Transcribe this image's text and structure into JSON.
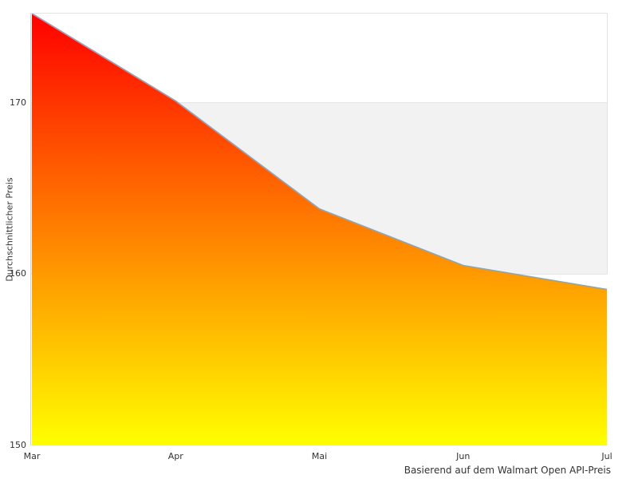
{
  "chart_data": {
    "type": "area",
    "categories": [
      "Mar",
      "Apr",
      "Mai",
      "Jun",
      "Jul"
    ],
    "values": [
      175.2,
      170.1,
      163.8,
      160.5,
      159.1
    ],
    "title": "",
    "xlabel": "",
    "ylabel": "Durchschnittlicher Preis",
    "caption": "Basierend auf dem Walmart Open API-Preis",
    "ylim": [
      150,
      175.2
    ],
    "yticks": [
      150,
      160,
      170
    ],
    "band": {
      "from": 160,
      "to": 170,
      "color": "#f2f2f2"
    },
    "legend": "none",
    "grid": "horizontal-band",
    "colors": {
      "gradient_top": "#ff0000",
      "gradient_bottom": "#ffff00",
      "line": "#86a6c2",
      "border": "#e3e3e3",
      "axis_line": "#d4d4d4",
      "text": "#333333",
      "background": "#ffffff"
    }
  }
}
